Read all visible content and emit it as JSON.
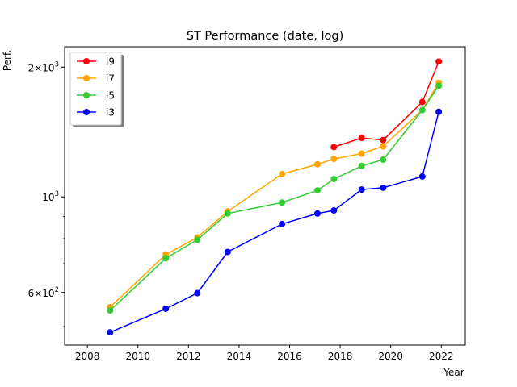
{
  "chart_data": {
    "type": "line",
    "title": "ST Performance (date, log)",
    "xlabel": "Year",
    "ylabel": "Perf.",
    "xlim": [
      2007.1,
      2022.95
    ],
    "ylim": [
      453,
      2230
    ],
    "yscale": "log",
    "grid": false,
    "legend_position": "top-left",
    "x_ticks": [
      2008,
      2010,
      2012,
      2014,
      2016,
      2018,
      2020,
      2022
    ],
    "x_tick_labels": [
      "2008",
      "2010",
      "2012",
      "2014",
      "2016",
      "2018",
      "2020",
      "2022"
    ],
    "y_ticks": [
      600,
      1000,
      2000
    ],
    "y_tick_labels": [
      {
        "base": "6",
        "mult": "×",
        "exp_base": "10",
        "exp": "2"
      },
      {
        "base": "",
        "mult": "",
        "exp_base": "10",
        "exp": "3"
      },
      {
        "base": "2",
        "mult": "×",
        "exp_base": "10",
        "exp": "3"
      }
    ],
    "series": [
      {
        "name": "i9",
        "color": "#ff0000",
        "points": [
          [
            2017.75,
            1305
          ],
          [
            2018.85,
            1370
          ],
          [
            2019.7,
            1355
          ],
          [
            2021.25,
            1660
          ],
          [
            2021.9,
            2060
          ]
        ]
      },
      {
        "name": "i7",
        "color": "#ffa500",
        "points": [
          [
            2008.9,
            555
          ],
          [
            2011.1,
            735
          ],
          [
            2012.35,
            805
          ],
          [
            2013.55,
            925
          ],
          [
            2015.7,
            1130
          ],
          [
            2017.1,
            1190
          ],
          [
            2017.75,
            1225
          ],
          [
            2018.85,
            1260
          ],
          [
            2019.7,
            1310
          ],
          [
            2021.25,
            1590
          ],
          [
            2021.9,
            1840
          ]
        ]
      },
      {
        "name": "i5",
        "color": "#32cd32",
        "points": [
          [
            2008.9,
            545
          ],
          [
            2011.1,
            720
          ],
          [
            2012.35,
            795
          ],
          [
            2013.55,
            915
          ],
          [
            2015.7,
            970
          ],
          [
            2017.1,
            1035
          ],
          [
            2017.75,
            1100
          ],
          [
            2018.85,
            1180
          ],
          [
            2019.7,
            1220
          ],
          [
            2021.25,
            1590
          ],
          [
            2021.9,
            1810
          ]
        ]
      },
      {
        "name": "i3",
        "color": "#0000ff",
        "points": [
          [
            2008.9,
            485
          ],
          [
            2011.1,
            550
          ],
          [
            2012.35,
            598
          ],
          [
            2013.55,
            745
          ],
          [
            2015.7,
            865
          ],
          [
            2017.1,
            915
          ],
          [
            2017.75,
            930
          ],
          [
            2018.85,
            1040
          ],
          [
            2019.7,
            1050
          ],
          [
            2021.25,
            1115
          ],
          [
            2021.9,
            1575
          ]
        ]
      }
    ]
  }
}
